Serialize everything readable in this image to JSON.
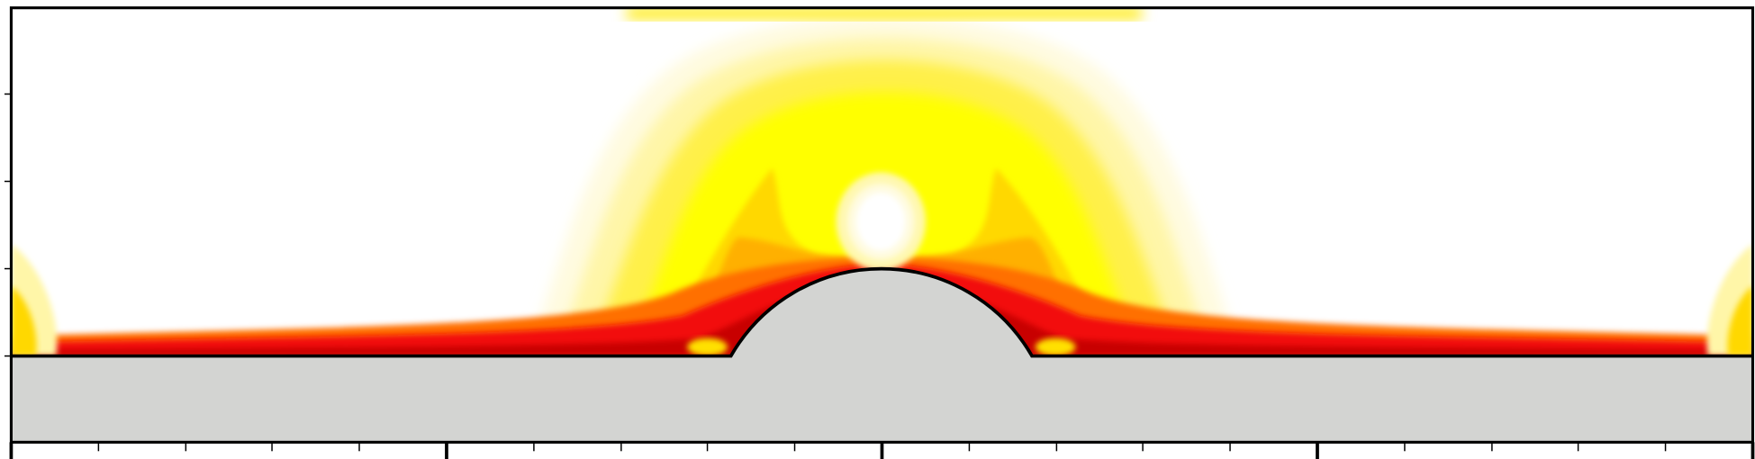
{
  "chart_data": {
    "type": "contour"
  }
}
